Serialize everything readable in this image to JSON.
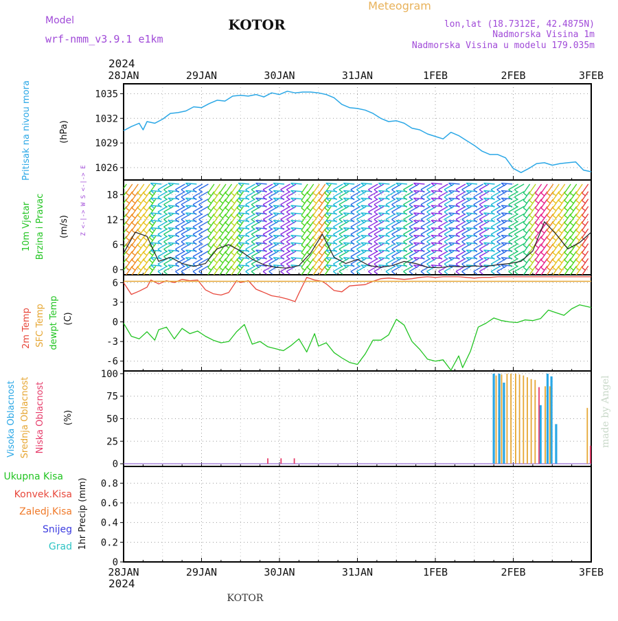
{
  "header": {
    "model_label": "Model",
    "model_name": "wrf-nmm_v3.9.1  e1km",
    "station": "KOTOR",
    "product": "Meteogram",
    "lonlat": "lon,lat (18.7312E, 42.4875N)",
    "elev": "Nadmorska Visina 1m",
    "elev_model": "Nadmorska Visina u modelu 179.035m",
    "footer_station": "KOTOR",
    "credit": "made by Angel",
    "year_top": "2024",
    "year_bottom": "2024"
  },
  "colors": {
    "pressure": "#2aa7e6",
    "temp2m": "#e8483c",
    "sfc_temp": "#e6a632",
    "dewpoint": "#22c422",
    "high_cloud": "#2aa7e6",
    "mid_cloud": "#e6a632",
    "low_cloud": "#e63c6a",
    "axis_purple": "#a04ad8",
    "title_orange": "#e8b25a"
  },
  "x_ticks": [
    "28JAN",
    "29JAN",
    "30JAN",
    "31JAN",
    "1FEB",
    "2FEB",
    "3FEB"
  ],
  "panels": {
    "pressure": {
      "side": "Pritisak na nivou mora",
      "unit": "(hPa)"
    },
    "wind": {
      "side1": "10m Vjetar",
      "side2": "Brzina i Pravac",
      "unit": "(m/s)",
      "compass": "Z <-|-> W  S <-|-> E"
    },
    "temp": {
      "side1": "2m Temp",
      "side2": "SFC Temp",
      "side3": "dewpt Temp",
      "unit": "(C)"
    },
    "cloud": {
      "side1": "Visoka Oblacnost",
      "side2": "Srednja Oblacnost",
      "side3": "Niska Oblacnost",
      "unit": "(%)"
    },
    "precip": {
      "legend": [
        "Ukupna Kisa",
        "Konvek.Kisa",
        "Zaledj.Kisa",
        "Snijeg",
        "Grad"
      ],
      "legend_colors": [
        "#22c422",
        "#e8483c",
        "#f07a2a",
        "#3a3ae0",
        "#2ec4c4"
      ],
      "unit": "1hr Precip (mm)"
    }
  },
  "chart_data": [
    {
      "type": "line",
      "name": "pressure",
      "ylabel": "(hPa)",
      "yticks": [
        1026,
        1029,
        1032,
        1035
      ],
      "ylim": [
        1024.5,
        1036.2
      ],
      "x": [
        0,
        0.1,
        0.2,
        0.25,
        0.3,
        0.4,
        0.5,
        0.6,
        0.7,
        0.8,
        0.9,
        1.0,
        1.1,
        1.2,
        1.3,
        1.4,
        1.5,
        1.6,
        1.7,
        1.8,
        1.9,
        2.0,
        2.1,
        2.2,
        2.3,
        2.4,
        2.5,
        2.6,
        2.7,
        2.8,
        2.9,
        3.0,
        3.1,
        3.2,
        3.3,
        3.4,
        3.5,
        3.6,
        3.7,
        3.8,
        3.9,
        4.0,
        4.1,
        4.2,
        4.3,
        4.4,
        4.5,
        4.6,
        4.7,
        4.8,
        4.9,
        5.0,
        5.1,
        5.2,
        5.3,
        5.4,
        5.5,
        5.6,
        5.7,
        5.8,
        5.9,
        6.0
      ],
      "y": [
        1030.5,
        1031.0,
        1031.4,
        1030.6,
        1031.6,
        1031.4,
        1031.9,
        1032.6,
        1032.7,
        1032.9,
        1033.4,
        1033.3,
        1033.8,
        1034.2,
        1034.1,
        1034.7,
        1034.8,
        1034.7,
        1034.9,
        1034.6,
        1035.1,
        1034.9,
        1035.3,
        1035.1,
        1035.2,
        1035.2,
        1035.1,
        1034.9,
        1034.5,
        1033.7,
        1033.3,
        1033.2,
        1033.0,
        1032.6,
        1032.0,
        1031.6,
        1031.7,
        1031.4,
        1030.8,
        1030.6,
        1030.1,
        1029.8,
        1029.5,
        1030.3,
        1029.9,
        1029.3,
        1028.7,
        1028.0,
        1027.6,
        1027.6,
        1027.2,
        1025.9,
        1025.4,
        1025.9,
        1026.5,
        1026.6,
        1026.3,
        1026.5,
        1026.6,
        1026.7,
        1025.7,
        1025.5
      ]
    },
    {
      "type": "line",
      "name": "wind",
      "ylabel": "(m/s)",
      "yticks": [
        0,
        6,
        12,
        18
      ],
      "ylim": [
        -1.2,
        21.5
      ],
      "series": [
        {
          "name": "wind speed",
          "x": [
            0,
            0.15,
            0.3,
            0.45,
            0.6,
            0.75,
            0.9,
            1.05,
            1.2,
            1.35,
            1.5,
            1.65,
            1.8,
            1.95,
            2.1,
            2.25,
            2.4,
            2.55,
            2.7,
            2.85,
            3.0,
            3.15,
            3.3,
            3.45,
            3.6,
            3.75,
            3.9,
            4.05,
            4.2,
            4.35,
            4.5,
            4.65,
            4.8,
            4.95,
            5.1,
            5.25,
            5.4,
            5.55,
            5.7,
            5.85,
            6.0
          ],
          "y": [
            4.0,
            9.0,
            8.0,
            2.0,
            3.0,
            1.5,
            0.8,
            1.5,
            5.0,
            6.0,
            4.5,
            2.5,
            1.2,
            0.6,
            0.4,
            1.0,
            4.0,
            8.5,
            3.0,
            1.5,
            2.5,
            1.0,
            0.6,
            1.0,
            2.0,
            1.5,
            0.6,
            0.5,
            0.8,
            0.7,
            0.9,
            0.8,
            1.2,
            1.5,
            2.0,
            4.5,
            11.5,
            8.5,
            5.0,
            6.5,
            9.0
          ]
        }
      ]
    },
    {
      "type": "line",
      "name": "temperature",
      "ylabel": "(C)",
      "yticks": [
        -6,
        -3,
        0,
        3,
        6
      ],
      "ylim": [
        -7.5,
        7.2
      ],
      "series": [
        {
          "name": "2m Temp",
          "x": [
            0,
            0.1,
            0.2,
            0.3,
            0.35,
            0.45,
            0.55,
            0.65,
            0.75,
            0.85,
            0.95,
            1.05,
            1.15,
            1.25,
            1.35,
            1.45,
            1.5,
            1.6,
            1.7,
            1.8,
            1.9,
            2.0,
            2.1,
            2.2,
            2.25,
            2.35,
            2.45,
            2.55,
            2.6,
            2.7,
            2.8,
            2.9,
            3.0,
            3.1,
            3.2,
            3.3,
            3.4,
            3.5,
            3.6,
            3.7,
            3.8,
            3.9,
            4.0,
            4.1,
            4.2,
            4.3,
            4.4,
            4.5,
            4.6,
            4.7,
            4.8,
            4.9,
            5.0,
            5.1,
            5.2,
            5.3,
            5.4,
            5.5,
            5.6,
            5.7,
            5.8,
            5.9,
            6.0
          ],
          "y": [
            6.0,
            4.2,
            4.7,
            5.3,
            6.4,
            5.8,
            6.3,
            6.0,
            6.5,
            6.3,
            6.4,
            4.9,
            4.3,
            4.1,
            4.5,
            6.3,
            6.0,
            6.3,
            5.0,
            4.5,
            4.0,
            3.8,
            3.5,
            3.1,
            4.4,
            6.8,
            6.4,
            6.2,
            5.8,
            4.8,
            4.6,
            5.5,
            5.6,
            5.7,
            6.2,
            6.6,
            6.7,
            6.6,
            6.5,
            6.6,
            6.8,
            6.9,
            6.8,
            6.9,
            6.9,
            6.9,
            6.8,
            6.7,
            6.8,
            6.8,
            6.9,
            6.9,
            6.9,
            6.9,
            6.9,
            6.9,
            6.9,
            6.9,
            6.9,
            6.9,
            6.9,
            6.9,
            6.9
          ]
        },
        {
          "name": "SFC Temp",
          "x": [
            0,
            6.0
          ],
          "y": [
            6.2,
            6.2
          ]
        },
        {
          "name": "dewpt Temp",
          "x": [
            0,
            0.1,
            0.2,
            0.3,
            0.4,
            0.45,
            0.55,
            0.65,
            0.75,
            0.85,
            0.95,
            1.05,
            1.15,
            1.25,
            1.35,
            1.45,
            1.55,
            1.65,
            1.75,
            1.85,
            1.95,
            2.05,
            2.15,
            2.25,
            2.35,
            2.45,
            2.5,
            2.6,
            2.7,
            2.8,
            2.9,
            3.0,
            3.1,
            3.2,
            3.3,
            3.4,
            3.5,
            3.6,
            3.7,
            3.8,
            3.9,
            4.0,
            4.1,
            4.2,
            4.3,
            4.35,
            4.45,
            4.55,
            4.65,
            4.75,
            4.85,
            4.95,
            5.05,
            5.15,
            5.25,
            5.35,
            5.45,
            5.55,
            5.65,
            5.75,
            5.85,
            6.0
          ],
          "y": [
            -0.2,
            -2.2,
            -2.6,
            -1.5,
            -2.8,
            -1.2,
            -0.8,
            -2.6,
            -1.0,
            -1.8,
            -1.4,
            -2.2,
            -2.8,
            -3.2,
            -3.0,
            -1.5,
            -0.4,
            -3.4,
            -3.0,
            -3.8,
            -4.1,
            -4.4,
            -3.6,
            -2.6,
            -4.6,
            -1.8,
            -3.7,
            -3.2,
            -4.7,
            -5.5,
            -6.2,
            -6.5,
            -4.9,
            -2.8,
            -2.8,
            -2.0,
            0.4,
            -0.5,
            -3.0,
            -4.2,
            -5.7,
            -6.0,
            -5.8,
            -7.4,
            -5.2,
            -7.0,
            -4.5,
            -0.8,
            -0.2,
            0.6,
            0.2,
            0.0,
            -0.1,
            0.3,
            0.2,
            0.5,
            1.8,
            1.4,
            1.0,
            2.0,
            2.6,
            2.2
          ]
        }
      ]
    },
    {
      "type": "bar",
      "name": "cloud cover",
      "ylabel": "(%)",
      "yticks": [
        0,
        25,
        50,
        75,
        100
      ],
      "ylim": [
        -3,
        103
      ],
      "series": [
        {
          "name": "Visoka Oblacnost",
          "x": [
            4.75,
            4.82,
            4.88,
            5.35,
            5.44,
            5.49,
            5.55
          ],
          "values": [
            100,
            100,
            90,
            65,
            100,
            97,
            44
          ]
        },
        {
          "name": "Srednja Oblacnost",
          "x": [
            4.78,
            4.85,
            4.92,
            4.97,
            5.03,
            5.08,
            5.13,
            5.18,
            5.23,
            5.28,
            5.41,
            5.47,
            5.95
          ],
          "values": [
            98,
            99,
            100,
            100,
            100,
            99,
            98,
            96,
            94,
            93,
            86,
            86,
            62
          ]
        },
        {
          "name": "Niska Oblacnost",
          "x": [
            1.85,
            2.02,
            2.19,
            5.33,
            5.99
          ],
          "values": [
            6,
            6,
            6,
            85,
            20
          ]
        }
      ]
    },
    {
      "type": "bar",
      "name": "1hr precipitation",
      "ylabel": "1hr Precip (mm)",
      "yticks": [
        0,
        0.2,
        0.4,
        0.6,
        0.8
      ],
      "ylim": [
        0,
        0.97
      ],
      "values": []
    }
  ]
}
